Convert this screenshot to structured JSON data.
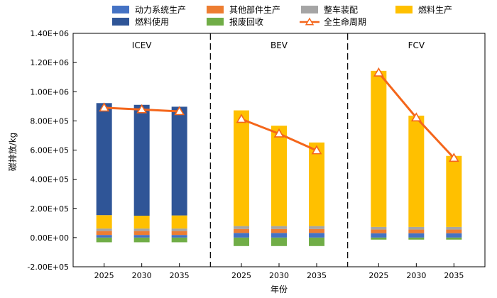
{
  "chart_data": {
    "type": "bar",
    "stacked": true,
    "ylabel": "碳排放/kg",
    "xlabel": "年份",
    "ylim": [
      -200000,
      1400000
    ],
    "y_ticks": [
      -200000,
      0,
      200000,
      400000,
      600000,
      800000,
      1000000,
      1200000,
      1400000
    ],
    "y_tick_labels": [
      "-2.00E+05",
      "0.00E+00",
      "2.00E+05",
      "4.00E+05",
      "6.00E+05",
      "8.00E+05",
      "1.00E+06",
      "1.20E+06",
      "1.40E+06"
    ],
    "legend_position": "top",
    "colors": {
      "动力系统生产": "#4472c4",
      "其他部件生产": "#ed7d31",
      "整车装配": "#a5a5a5",
      "燃料生产": "#ffc000",
      "燃料使用": "#2f5597",
      "报废回收": "#70ad47",
      "全生命周期": "#f4661b"
    },
    "legend": [
      {
        "name": "动力系统生产",
        "kind": "bar"
      },
      {
        "name": "其他部件生产",
        "kind": "bar"
      },
      {
        "name": "整车装配",
        "kind": "bar"
      },
      {
        "name": "燃料生产",
        "kind": "bar"
      },
      {
        "name": "燃料使用",
        "kind": "bar"
      },
      {
        "name": "报废回收",
        "kind": "bar"
      },
      {
        "name": "全生命周期",
        "kind": "line"
      }
    ],
    "panels": [
      {
        "title": "ICEV",
        "categories": [
          "2025",
          "2030",
          "2035"
        ],
        "series": [
          {
            "name": "动力系统生产",
            "values": [
              18000,
              18000,
              18000
            ]
          },
          {
            "name": "其他部件生产",
            "values": [
              27000,
              27000,
              27000
            ]
          },
          {
            "name": "整车装配",
            "values": [
              17000,
              17000,
              17000
            ]
          },
          {
            "name": "燃料生产",
            "values": [
              92000,
              88000,
              90000
            ]
          },
          {
            "name": "燃料使用",
            "values": [
              768000,
              760000,
              745000
            ]
          },
          {
            "name": "报废回收",
            "values": [
              -32000,
              -32000,
              -32000
            ]
          }
        ],
        "lifecycle": [
          890000,
          878000,
          865000
        ]
      },
      {
        "title": "BEV",
        "categories": [
          "2025",
          "2030",
          "2035"
        ],
        "series": [
          {
            "name": "动力系统生产",
            "values": [
              32000,
              32000,
              32000
            ]
          },
          {
            "name": "其他部件生产",
            "values": [
              27000,
              27000,
              27000
            ]
          },
          {
            "name": "整车装配",
            "values": [
              20000,
              20000,
              20000
            ]
          },
          {
            "name": "燃料生产",
            "values": [
              793000,
              688000,
              573000
            ]
          },
          {
            "name": "燃料使用",
            "values": [
              0,
              0,
              0
            ]
          },
          {
            "name": "报废回收",
            "values": [
              -58000,
              -58000,
              -58000
            ]
          }
        ],
        "lifecycle": [
          812000,
          712000,
          597000
        ]
      },
      {
        "title": "FCV",
        "categories": [
          "2025",
          "2030",
          "2035"
        ],
        "series": [
          {
            "name": "动力系统生产",
            "values": [
              30000,
              30000,
              30000
            ]
          },
          {
            "name": "其他部件生产",
            "values": [
              25000,
              25000,
              25000
            ]
          },
          {
            "name": "整车装配",
            "values": [
              18000,
              18000,
              18000
            ]
          },
          {
            "name": "燃料生产",
            "values": [
              1070000,
              763000,
              487000
            ]
          },
          {
            "name": "燃料使用",
            "values": [
              0,
              0,
              0
            ]
          },
          {
            "name": "报废回收",
            "values": [
              -14000,
              -14000,
              -14000
            ]
          }
        ],
        "lifecycle": [
          1130000,
          822000,
          545000
        ]
      }
    ]
  }
}
